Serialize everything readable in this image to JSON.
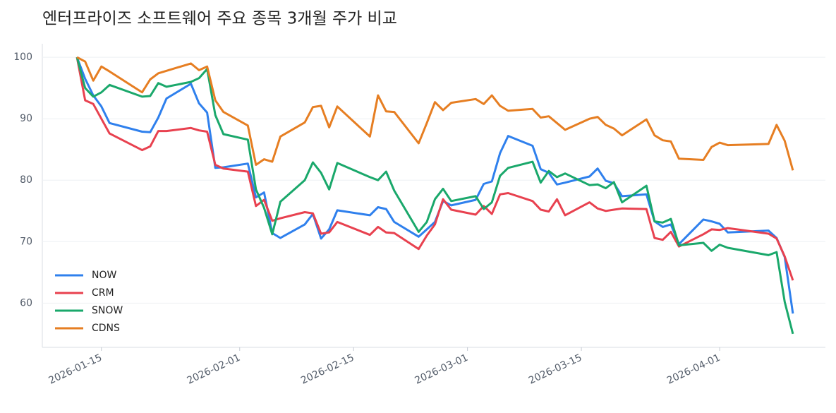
{
  "chart_data": {
    "type": "line",
    "title": "엔터프라이즈 소프트웨어 주요 종목 3개월 주가 비교",
    "x": [
      "2026-01-12",
      "2026-01-13",
      "2026-01-14",
      "2026-01-15",
      "2026-01-16",
      "2026-01-20",
      "2026-01-21",
      "2026-01-22",
      "2026-01-23",
      "2026-01-26",
      "2026-01-27",
      "2026-01-28",
      "2026-01-29",
      "2026-01-30",
      "2026-02-02",
      "2026-02-03",
      "2026-02-04",
      "2026-02-05",
      "2026-02-06",
      "2026-02-09",
      "2026-02-10",
      "2026-02-11",
      "2026-02-12",
      "2026-02-13",
      "2026-02-17",
      "2026-02-18",
      "2026-02-19",
      "2026-02-20",
      "2026-02-23",
      "2026-02-24",
      "2026-02-25",
      "2026-02-26",
      "2026-02-27",
      "2026-03-02",
      "2026-03-03",
      "2026-03-04",
      "2026-03-05",
      "2026-03-06",
      "2026-03-09",
      "2026-03-10",
      "2026-03-11",
      "2026-03-12",
      "2026-03-13",
      "2026-03-16",
      "2026-03-17",
      "2026-03-18",
      "2026-03-19",
      "2026-03-20",
      "2026-03-23",
      "2026-03-24",
      "2026-03-25",
      "2026-03-26",
      "2026-03-27",
      "2026-03-30",
      "2026-03-31",
      "2026-04-01",
      "2026-04-02",
      "2026-04-07",
      "2026-04-08",
      "2026-04-09",
      "2026-04-10"
    ],
    "series": [
      {
        "name": "NOW",
        "color": "#2f80ed",
        "values": [
          100,
          96.5,
          93.8,
          92,
          89.3,
          87.9,
          87.8,
          90.2,
          93.3,
          95.7,
          92.5,
          91,
          82,
          82.1,
          82.7,
          77.2,
          78,
          71.4,
          70.6,
          72.8,
          74.5,
          70.5,
          72,
          75.1,
          74.3,
          75.6,
          75.3,
          73.2,
          70.8,
          72,
          73.2,
          76.6,
          75.9,
          76.8,
          79.4,
          79.8,
          84.4,
          87.2,
          85.6,
          81.8,
          81.2,
          79.3,
          79.6,
          80.6,
          81.9,
          79.9,
          79.5,
          77.4,
          77.7,
          73.3,
          72.4,
          72.8,
          69.6,
          73.6,
          73.3,
          72.9,
          71.5,
          71.8,
          70.6,
          67.5,
          58.3
        ]
      },
      {
        "name": "CRM",
        "color": "#e8414f",
        "values": [
          100,
          93,
          92.4,
          90,
          87.6,
          84.9,
          85.5,
          88,
          88,
          88.5,
          88.1,
          87.9,
          82.5,
          81.9,
          81.4,
          75.8,
          76.8,
          73.4,
          73.8,
          74.8,
          74.6,
          71.3,
          71.5,
          73.2,
          71.1,
          72.4,
          71.5,
          71.4,
          68.8,
          71,
          72.8,
          76.9,
          75.2,
          74.4,
          75.8,
          74.5,
          77.7,
          77.9,
          76.6,
          75.2,
          74.9,
          76.9,
          74.3,
          76.4,
          75.4,
          75,
          75.2,
          75.4,
          75.3,
          70.6,
          70.3,
          71.6,
          69.2,
          71.2,
          72,
          71.9,
          72.2,
          71.3,
          70.5,
          67.6,
          63.7
        ]
      },
      {
        "name": "SNOW",
        "color": "#1aa86b",
        "values": [
          100,
          95,
          93.6,
          94.3,
          95.5,
          93.6,
          93.7,
          95.8,
          95.2,
          96,
          96.6,
          98.1,
          90.6,
          87.5,
          86.6,
          78.5,
          75.5,
          71.2,
          76.5,
          80,
          82.9,
          81.2,
          78.5,
          82.8,
          80.5,
          80,
          81.4,
          78.3,
          71.6,
          73.2,
          76.9,
          78.6,
          76.6,
          77.4,
          75.3,
          76.4,
          80.7,
          82,
          83,
          79.6,
          81.5,
          80.5,
          81.1,
          79.2,
          79.3,
          78.7,
          79.7,
          76.4,
          79.1,
          73.3,
          73.1,
          73.7,
          69.4,
          69.8,
          68.5,
          69.5,
          69,
          67.8,
          68.3,
          60.2,
          55
        ]
      },
      {
        "name": "CDNS",
        "color": "#e67e22",
        "values": [
          100,
          99.3,
          96.2,
          98.5,
          97.7,
          94.3,
          96.4,
          97.4,
          97.8,
          99,
          97.9,
          98.5,
          93,
          91.1,
          88.9,
          82.5,
          83.4,
          83,
          87.1,
          89.4,
          91.9,
          92.1,
          88.6,
          92,
          87.1,
          93.8,
          91.2,
          91.1,
          86,
          89.3,
          92.7,
          91.4,
          92.6,
          93.2,
          92.4,
          93.8,
          92.1,
          91.3,
          91.6,
          90.2,
          90.4,
          89.3,
          88.2,
          90,
          90.3,
          89,
          88.4,
          87.3,
          89.9,
          87.3,
          86.5,
          86.3,
          83.5,
          83.3,
          85.4,
          86.1,
          85.7,
          85.9,
          89,
          86.4,
          81.6
        ]
      }
    ],
    "xlim": [
      "2026-01-08",
      "2026-04-14"
    ],
    "xticks": [
      "2026-01-15",
      "2026-02-01",
      "2026-02-15",
      "2026-03-01",
      "2026-03-15",
      "2026-04-01"
    ],
    "ylim": [
      52.8,
      102.2
    ],
    "yticks": [
      60,
      70,
      80,
      90,
      100
    ],
    "grid": true,
    "legend": "lower left"
  }
}
